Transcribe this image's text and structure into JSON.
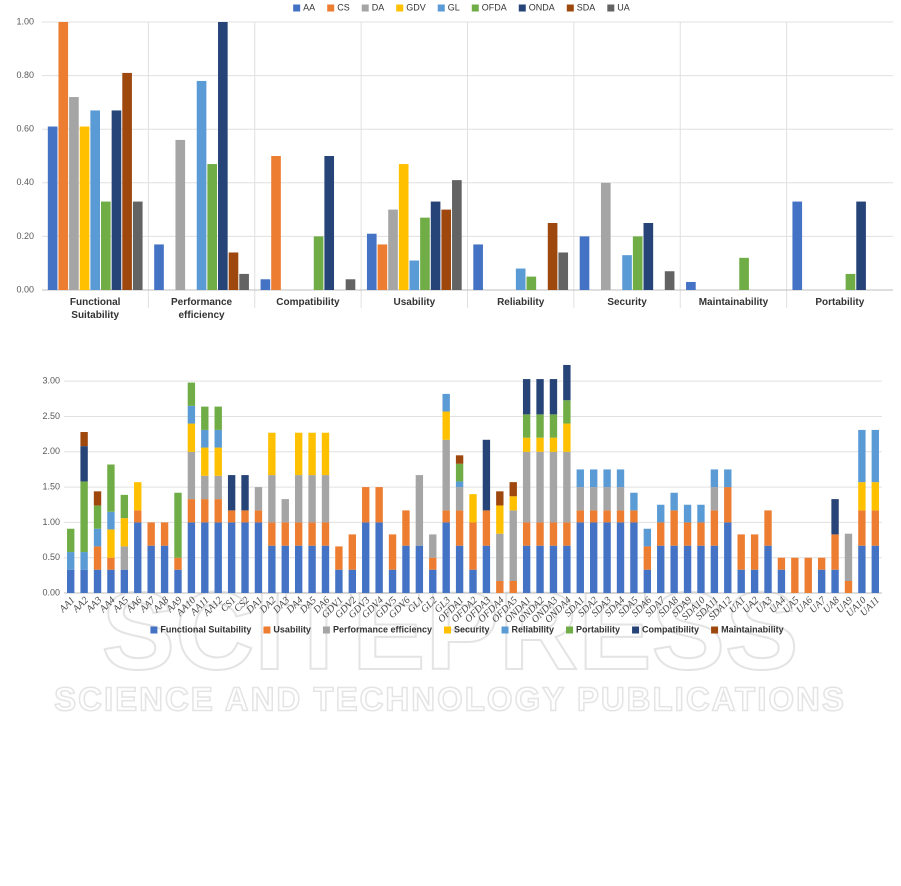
{
  "watermark": {
    "title": "SCITEPRESS",
    "subtitle": "SCIENCE AND TECHNOLOGY PUBLICATIONS"
  },
  "chart_data": [
    {
      "type": "bar",
      "legend": "top",
      "grid": true,
      "categories": [
        "Functional Suitability",
        "Performance efficiency",
        "Compatibility",
        "Usability",
        "Reliability",
        "Security",
        "Maintainability",
        "Portability"
      ],
      "ylim": [
        0,
        1
      ],
      "yticks": [
        {
          "value": 0,
          "label": "0.00"
        },
        {
          "value": 0.2,
          "label": "0.20"
        },
        {
          "value": 0.4,
          "label": "0.40"
        },
        {
          "value": 0.6,
          "label": "0.60"
        },
        {
          "value": 0.8,
          "label": "0.80"
        },
        {
          "value": 1,
          "label": "1.00"
        }
      ],
      "series": [
        {
          "name": "AA",
          "color": "#4472c4",
          "values": [
            0.61,
            0.17,
            0.04,
            0.21,
            0.17,
            0.2,
            0.03,
            0.33
          ]
        },
        {
          "name": "CS",
          "color": "#ed7d31",
          "values": [
            1.0,
            0,
            0.5,
            0.17,
            0,
            0,
            0,
            0
          ]
        },
        {
          "name": "DA",
          "color": "#a5a5a5",
          "values": [
            0.72,
            0.56,
            0,
            0.3,
            0,
            0.4,
            0,
            0
          ]
        },
        {
          "name": "GDV",
          "color": "#ffc000",
          "values": [
            0.61,
            0,
            0,
            0.47,
            0,
            0,
            0,
            0
          ]
        },
        {
          "name": "GL",
          "color": "#5b9bd5",
          "values": [
            0.67,
            0.78,
            0,
            0.11,
            0.08,
            0.13,
            0,
            0
          ]
        },
        {
          "name": "OFDA",
          "color": "#70ad47",
          "values": [
            0.33,
            0.47,
            0.2,
            0.27,
            0.05,
            0.2,
            0.12,
            0.06
          ]
        },
        {
          "name": "ONDA",
          "color": "#264478",
          "values": [
            0.67,
            1.0,
            0.5,
            0.33,
            0,
            0.25,
            0,
            0.33
          ]
        },
        {
          "name": "SDA",
          "color": "#9e480e",
          "values": [
            0.81,
            0.14,
            0,
            0.3,
            0.25,
            0,
            0,
            0
          ]
        },
        {
          "name": "UA",
          "color": "#636363",
          "values": [
            0.33,
            0.06,
            0.04,
            0.41,
            0.14,
            0.07,
            0,
            0
          ]
        }
      ]
    },
    {
      "type": "bar",
      "stacked": true,
      "legend": "bottom",
      "grid": true,
      "categories": [
        "AA1",
        "AA2",
        "AA3",
        "AA4",
        "AA5",
        "AA6",
        "AA7",
        "AA8",
        "AA9",
        "AA10",
        "AA11",
        "AA12",
        "CS1",
        "CS2",
        "DA1",
        "DA2",
        "DA3",
        "DA4",
        "DA5",
        "DA6",
        "GDV1",
        "GDV2",
        "GDV3",
        "GDV4",
        "GDV5",
        "GDV6",
        "GL1",
        "GL2",
        "GL3",
        "OFDA1",
        "OFDA2",
        "OFDA3",
        "OFDA4",
        "OFDA5",
        "ONDA1",
        "ONDA2",
        "ONDA3",
        "ONDA4",
        "SDA1",
        "SDA2",
        "SDA3",
        "SDA4",
        "SDA5",
        "SDA6",
        "SDA7",
        "SDA8",
        "SDA9",
        "SDA10",
        "SDA11",
        "SDA12",
        "UA1",
        "UA2",
        "UA3",
        "UA4",
        "UA5",
        "UA6",
        "UA7",
        "UA8",
        "UA9",
        "UA10",
        "UA11"
      ],
      "ylim": [
        0,
        3.3
      ],
      "yticks": [
        {
          "value": 0,
          "label": "0.00"
        },
        {
          "value": 0.5,
          "label": "0.50"
        },
        {
          "value": 1,
          "label": "1.00"
        },
        {
          "value": 1.5,
          "label": "1.50"
        },
        {
          "value": 2,
          "label": "2.00"
        },
        {
          "value": 2.5,
          "label": "2.50"
        },
        {
          "value": 3,
          "label": "3.00"
        }
      ],
      "series": [
        {
          "name": "Functional Suitability",
          "color": "#4472c4",
          "values": [
            0.33,
            0.33,
            0.33,
            0.33,
            0.33,
            1.0,
            0.67,
            0.67,
            0.33,
            1.0,
            1.0,
            1.0,
            1.0,
            1.0,
            1.0,
            0.67,
            0.67,
            0.67,
            0.67,
            0.67,
            0.33,
            0.33,
            1.0,
            1.0,
            0.33,
            0.67,
            0.67,
            0.33,
            1.0,
            0.67,
            0.33,
            0.67,
            0,
            0,
            0.67,
            0.67,
            0.67,
            0.67,
            1.0,
            1.0,
            1.0,
            1.0,
            1.0,
            0.33,
            0.67,
            0.67,
            0.67,
            0.67,
            0.67,
            1.0,
            0.33,
            0.33,
            0.67,
            0.33,
            0,
            0,
            0.33,
            0.33,
            0,
            0.67,
            0.67
          ]
        },
        {
          "name": "Usability",
          "color": "#ed7d31",
          "values": [
            0,
            0,
            0.33,
            0.17,
            0,
            0.17,
            0.33,
            0.33,
            0.17,
            0.33,
            0.33,
            0.33,
            0.17,
            0.17,
            0.17,
            0.33,
            0.33,
            0.33,
            0.33,
            0.33,
            0.33,
            0.5,
            0.5,
            0.5,
            0.5,
            0.5,
            0,
            0.17,
            0.17,
            0.5,
            0.67,
            0.5,
            0.17,
            0.17,
            0.33,
            0.33,
            0.33,
            0.33,
            0.17,
            0.17,
            0.17,
            0.17,
            0.17,
            0.33,
            0.33,
            0.5,
            0.33,
            0.33,
            0.5,
            0.5,
            0.5,
            0.5,
            0.5,
            0.17,
            0.5,
            0.5,
            0.17,
            0.5,
            0.17,
            0.5,
            0.5
          ]
        },
        {
          "name": "Performance efficiency",
          "color": "#a5a5a5",
          "values": [
            0,
            0,
            0,
            0,
            0.33,
            0,
            0,
            0,
            0,
            0.67,
            0.33,
            0.33,
            0,
            0,
            0.33,
            0.67,
            0.33,
            0.67,
            0.67,
            0.67,
            0,
            0,
            0,
            0,
            0,
            0,
            1.0,
            0.33,
            1.0,
            0.33,
            0,
            0,
            0.67,
            1.0,
            1.0,
            1.0,
            1.0,
            1.0,
            0.33,
            0.33,
            0.33,
            0.33,
            0,
            0,
            0,
            0,
            0,
            0,
            0.33,
            0,
            0,
            0,
            0,
            0,
            0,
            0,
            0,
            0,
            0.67,
            0,
            0
          ]
        },
        {
          "name": "Security",
          "color": "#ffc000",
          "values": [
            0,
            0,
            0,
            0.4,
            0.4,
            0.4,
            0,
            0,
            0,
            0.4,
            0.4,
            0.4,
            0,
            0,
            0,
            0.6,
            0,
            0.6,
            0.6,
            0.6,
            0,
            0,
            0,
            0,
            0,
            0,
            0,
            0,
            0.4,
            0,
            0.4,
            0,
            0.4,
            0.2,
            0.2,
            0.2,
            0.2,
            0.4,
            0,
            0,
            0,
            0,
            0,
            0,
            0,
            0,
            0,
            0,
            0,
            0,
            0,
            0,
            0,
            0,
            0,
            0,
            0,
            0,
            0,
            0.4,
            0.4
          ]
        },
        {
          "name": "Reliability",
          "color": "#5b9bd5",
          "values": [
            0.25,
            0.25,
            0.25,
            0.25,
            0,
            0,
            0,
            0,
            0,
            0.25,
            0.25,
            0.25,
            0,
            0,
            0,
            0,
            0,
            0,
            0,
            0,
            0,
            0,
            0,
            0,
            0,
            0,
            0,
            0,
            0.25,
            0.08,
            0,
            0,
            0,
            0,
            0,
            0,
            0,
            0,
            0.25,
            0.25,
            0.25,
            0.25,
            0.25,
            0.25,
            0.25,
            0.25,
            0.25,
            0.25,
            0.25,
            0.25,
            0,
            0,
            0,
            0,
            0,
            0,
            0,
            0,
            0,
            0.74,
            0.74
          ]
        },
        {
          "name": "Portability",
          "color": "#70ad47",
          "values": [
            0.33,
            1.0,
            0.33,
            0.67,
            0.33,
            0,
            0,
            0,
            0.92,
            0.33,
            0.33,
            0.33,
            0,
            0,
            0,
            0,
            0,
            0,
            0,
            0,
            0,
            0,
            0,
            0,
            0,
            0,
            0,
            0,
            0,
            0.25,
            0,
            0,
            0,
            0,
            0.33,
            0.33,
            0.33,
            0.33,
            0,
            0,
            0,
            0,
            0,
            0,
            0,
            0,
            0,
            0,
            0,
            0,
            0,
            0,
            0,
            0,
            0,
            0,
            0,
            0,
            0,
            0,
            0
          ]
        },
        {
          "name": "Compatibility",
          "color": "#264478",
          "values": [
            0,
            0.5,
            0,
            0,
            0,
            0,
            0,
            0,
            0,
            0,
            0,
            0,
            0.5,
            0.5,
            0,
            0,
            0,
            0,
            0,
            0,
            0,
            0,
            0,
            0,
            0,
            0,
            0,
            0,
            0,
            0,
            0,
            1.0,
            0,
            0,
            0.5,
            0.5,
            0.5,
            0.5,
            0,
            0,
            0,
            0,
            0,
            0,
            0,
            0,
            0,
            0,
            0,
            0,
            0,
            0,
            0,
            0,
            0,
            0,
            0,
            0.5,
            0,
            0,
            0
          ]
        },
        {
          "name": "Maintainability",
          "color": "#9e480e",
          "values": [
            0,
            0.2,
            0.2,
            0,
            0,
            0,
            0,
            0,
            0,
            0,
            0,
            0,
            0,
            0,
            0,
            0,
            0,
            0,
            0,
            0,
            0,
            0,
            0,
            0,
            0,
            0,
            0,
            0,
            0,
            0.12,
            0,
            0,
            0.2,
            0.2,
            0,
            0,
            0,
            0,
            0,
            0,
            0,
            0,
            0,
            0,
            0,
            0,
            0,
            0,
            0,
            0,
            0,
            0,
            0,
            0,
            0,
            0,
            0,
            0,
            0,
            0,
            0
          ]
        }
      ]
    }
  ]
}
